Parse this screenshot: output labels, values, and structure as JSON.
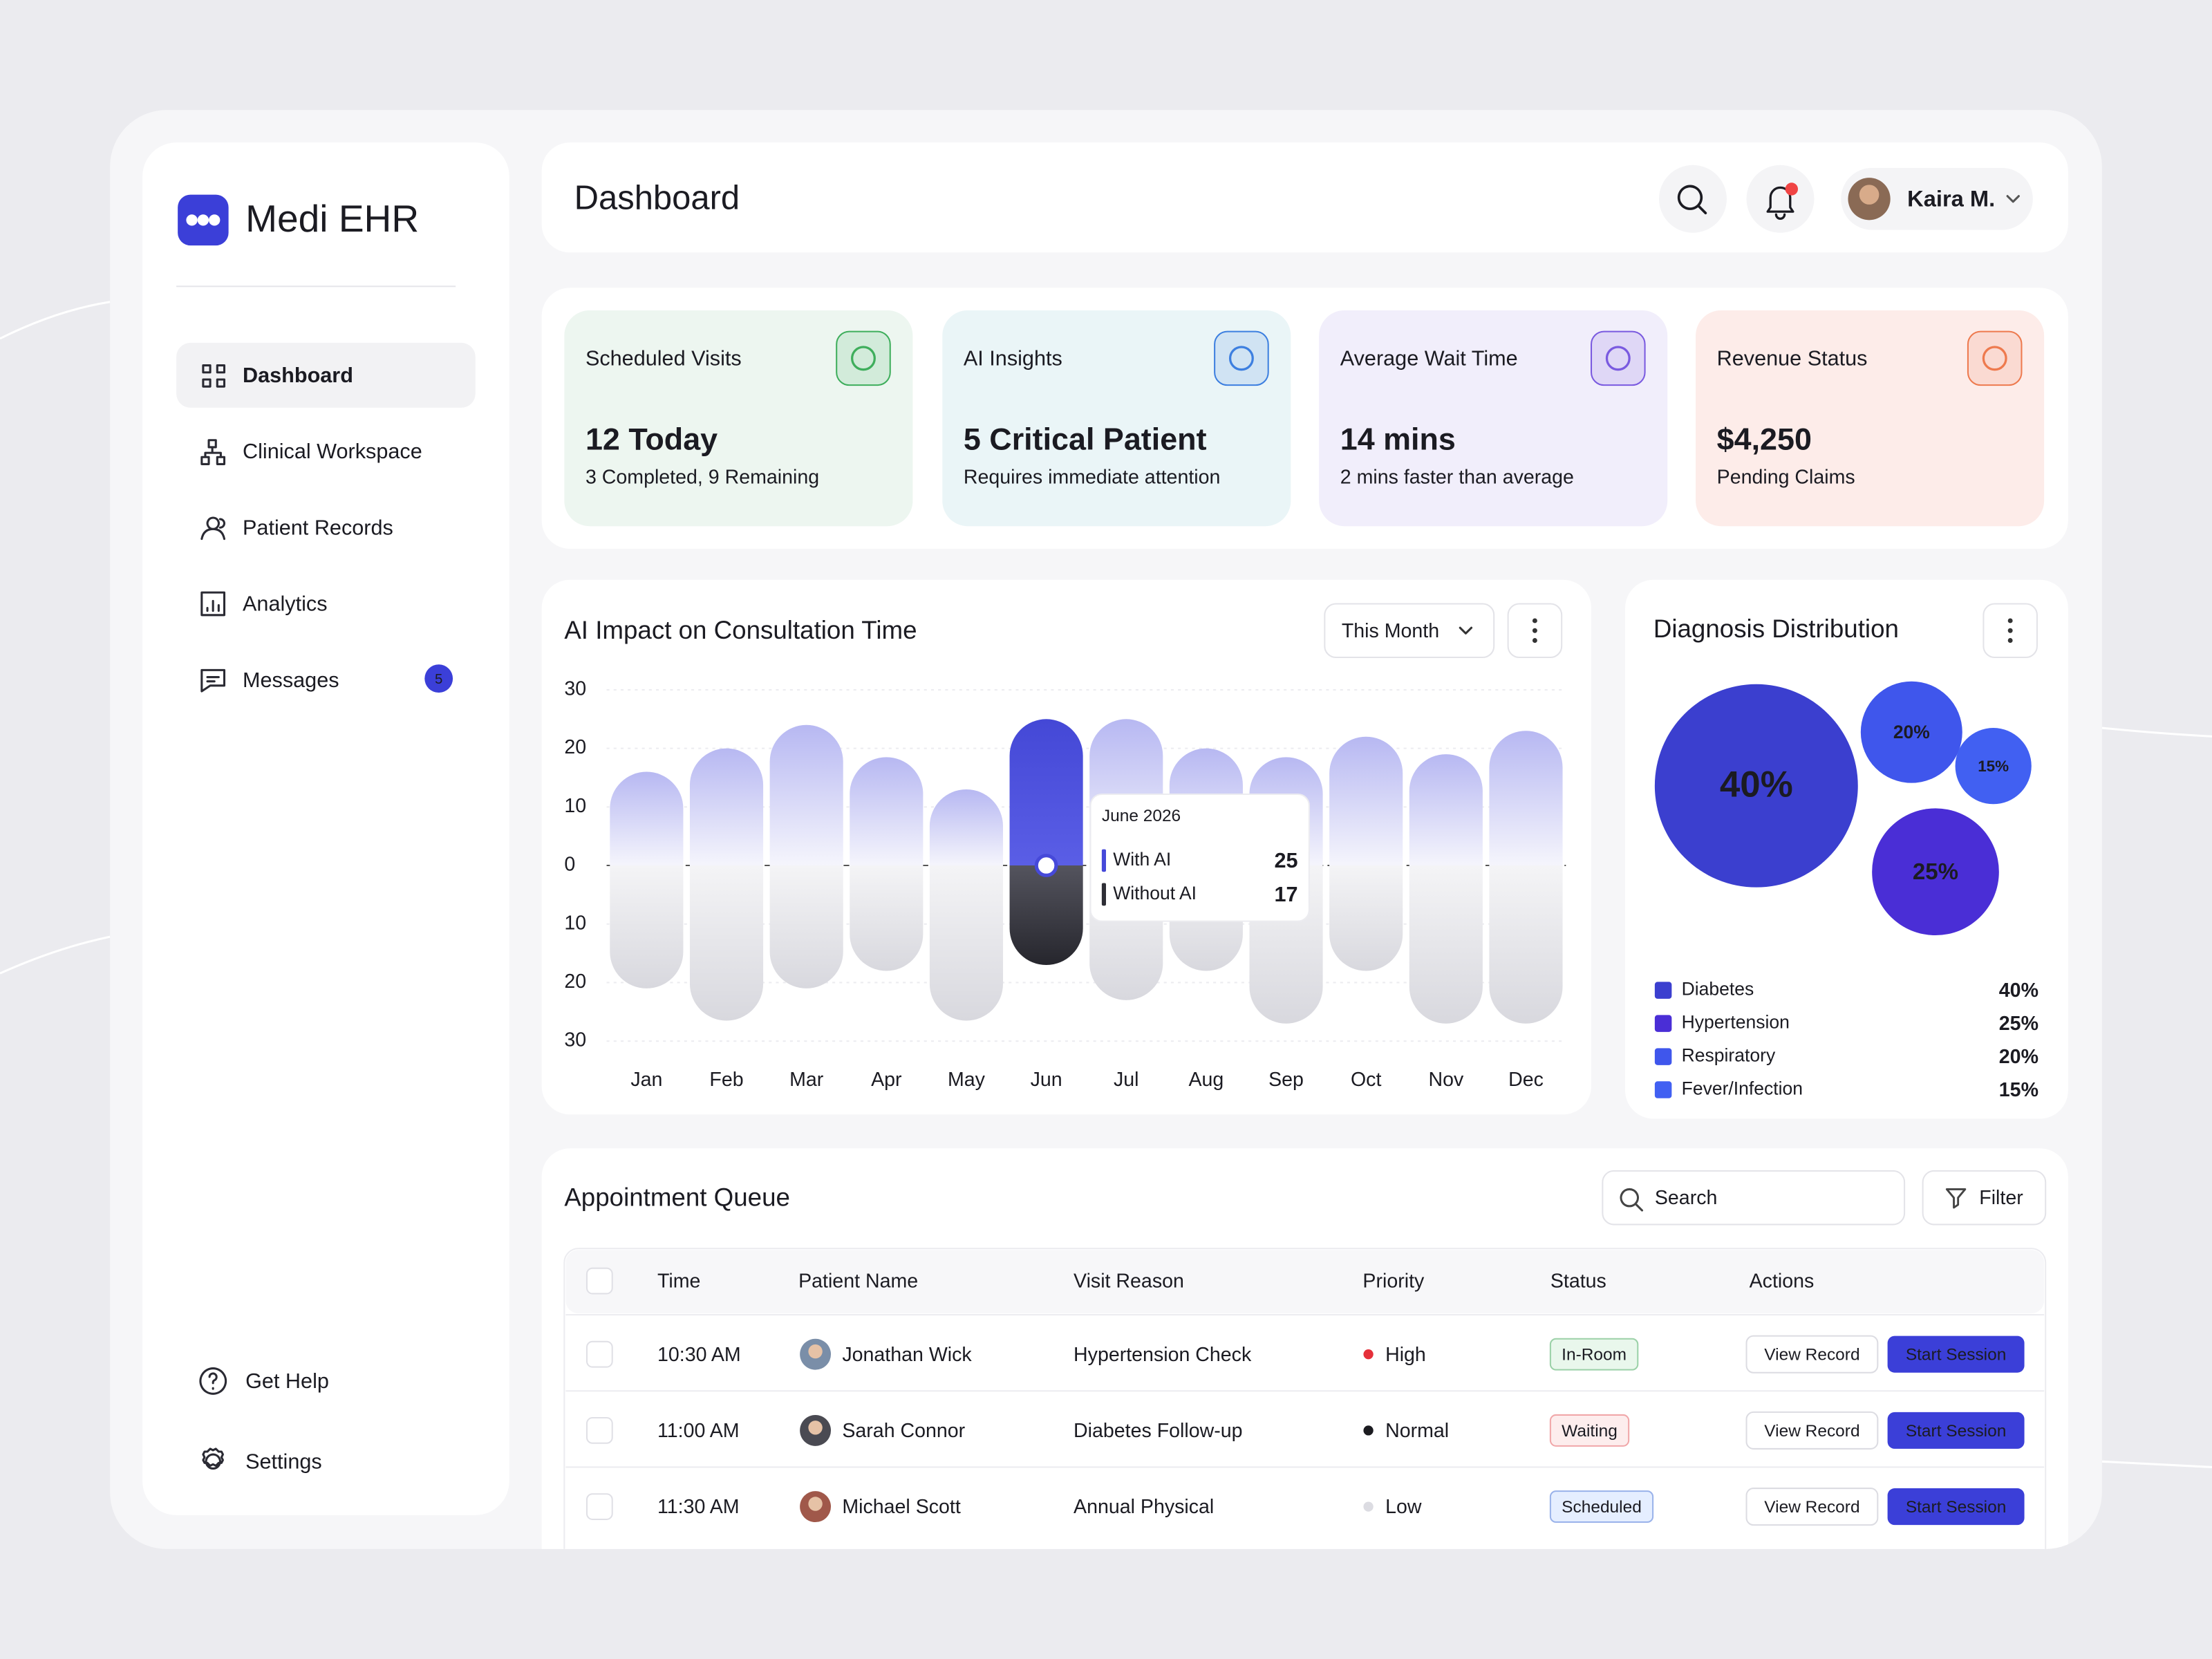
{
  "sidebar": {
    "brand": "Medi EHR",
    "nav": [
      {
        "label": "Dashboard",
        "active": true
      },
      {
        "label": "Clinical Workspace"
      },
      {
        "label": "Patient Records"
      },
      {
        "label": "Analytics"
      },
      {
        "label": "Messages",
        "badge": 5
      }
    ],
    "footer": [
      "Get Help",
      "Settings"
    ]
  },
  "header": {
    "title": "Dashboard",
    "user": "Kaira M."
  },
  "kpis": [
    {
      "title": "Scheduled Visits",
      "value": "12 Today",
      "note": "3 Completed, 9 Remaining",
      "color": "#edf6f0",
      "accent": "#3fae5c"
    },
    {
      "title": "AI Insights",
      "value": "5 Critical Patient",
      "note": "Requires immediate attention",
      "color": "#eaf5f7",
      "accent": "#3d7fe0"
    },
    {
      "title": "Average Wait Time",
      "value": "14 mins",
      "note": "2 mins faster than average",
      "color": "#f1eefb",
      "accent": "#7a5ae0"
    },
    {
      "title": "Revenue Status",
      "value": "$4,250",
      "note": "Pending Claims",
      "color": "#fdece9",
      "accent": "#ee7a4e"
    }
  ],
  "chart_data": [
    {
      "type": "bar",
      "title": "AI Impact on Consultation Time",
      "period": "This Month",
      "categories": [
        "Jan",
        "Feb",
        "Mar",
        "Apr",
        "May",
        "Jun",
        "Jul",
        "Aug",
        "Sep",
        "Oct",
        "Nov",
        "Dec"
      ],
      "series": [
        {
          "name": "With AI",
          "color": "#4649d9",
          "values": [
            16,
            20,
            24,
            18.5,
            13,
            25,
            25,
            20,
            18.5,
            22,
            19,
            23
          ]
        },
        {
          "name": "Without AI",
          "color": "#2e2e36",
          "values": [
            -21,
            -26.5,
            -21,
            -18,
            -26.5,
            -17,
            -23,
            -18,
            -27,
            -18,
            -27,
            -27
          ]
        }
      ],
      "ylim": [
        -30,
        30
      ],
      "yticks": [
        {
          "value": -30,
          "label": "30"
        },
        {
          "value": -20,
          "label": "20"
        },
        {
          "value": -10,
          "label": "10"
        },
        0,
        10,
        20,
        30
      ],
      "grid": true,
      "highlight": 5,
      "tooltip": {
        "title": "June 2026",
        "values": [
          25,
          17
        ]
      }
    },
    {
      "type": "bubble",
      "title": "Diagnosis Distribution",
      "categories": [
        "Diabetes",
        "Hypertension",
        "Respiratory",
        "Fever/Infection"
      ],
      "values": [
        40,
        25,
        20,
        15
      ],
      "value_labels": [
        "40%",
        "25%",
        "20%",
        "15%"
      ],
      "colors": [
        "#3b3fcf",
        "#4a2ed6",
        "#3f56ec",
        "#4160f2"
      ]
    }
  ],
  "appointments": {
    "title": "Appointment Queue",
    "search": "Search",
    "filter": "Filter",
    "columns": [
      "Time",
      "Patient Name",
      "Visit Reason",
      "Priority",
      "Status",
      "Actions"
    ],
    "row_actions": [
      "View Record",
      "Start Session"
    ],
    "rows": [
      {
        "time": "10:30 AM",
        "patient": "Jonathan Wick",
        "reason": "Hypertension Check",
        "priority": "High",
        "priority_color": "#e5303a",
        "status": "In-Room",
        "status_color": "#2f9d4a",
        "status_bg": "#e9f7ec"
      },
      {
        "time": "11:00 AM",
        "patient": "Sarah Connor",
        "reason": "Diabetes Follow-up",
        "priority": "Normal",
        "priority_color": "#1b1b20",
        "status": "Waiting",
        "status_color": "#e0474c",
        "status_bg": "#fdeded"
      },
      {
        "time": "11:30 AM",
        "patient": "Michael Scott",
        "reason": "Annual Physical",
        "priority": "Low",
        "priority_color": "#dcdce2",
        "status": "Scheduled",
        "status_color": "#2f5fd0",
        "status_bg": "#e5eeff"
      }
    ]
  }
}
